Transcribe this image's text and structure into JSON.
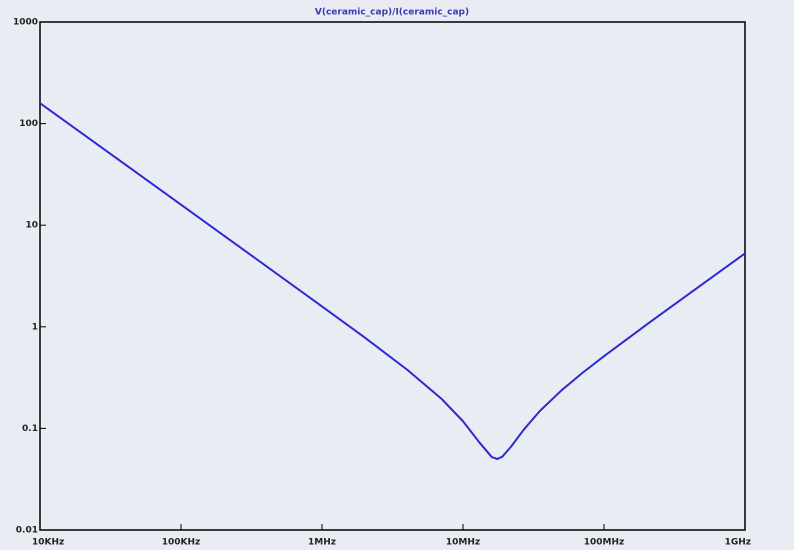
{
  "chart_data": {
    "type": "line",
    "title": "V(ceramic_cap)/I(ceramic_cap)",
    "x": [
      10000,
      30000,
      100000,
      300000,
      1000000,
      2000000,
      4000000,
      7000000,
      10000000,
      13000000,
      16000000,
      17500000,
      19000000,
      22000000,
      27000000,
      35000000,
      50000000,
      70000000,
      100000000,
      200000000,
      400000000,
      700000000,
      1000000000
    ],
    "series": [
      {
        "name": "V(ceramic_cap)/I(ceramic_cap)",
        "color": "#2b2bd0",
        "values": [
          159,
          53.05,
          15.92,
          5.305,
          1.586,
          0.787,
          0.38,
          0.197,
          0.1176,
          0.0734,
          0.0522,
          0.05,
          0.0527,
          0.0665,
          0.0974,
          0.148,
          0.237,
          0.35,
          0.514,
          1.048,
          2.107,
          3.695,
          5.278
        ]
      }
    ],
    "xscale": "log",
    "yscale": "log",
    "xlim": [
      10000,
      1000000000
    ],
    "ylim": [
      0.01,
      1000
    ],
    "xticks": [
      {
        "value": 10000,
        "label": "10KHz"
      },
      {
        "value": 100000,
        "label": "100KHz"
      },
      {
        "value": 1000000,
        "label": "1MHz"
      },
      {
        "value": 10000000,
        "label": "10MHz"
      },
      {
        "value": 100000000,
        "label": "100MHz"
      },
      {
        "value": 1000000000,
        "label": "1GHz"
      }
    ],
    "yticks": [
      0.01,
      0.1,
      1,
      10,
      100,
      1000
    ]
  }
}
